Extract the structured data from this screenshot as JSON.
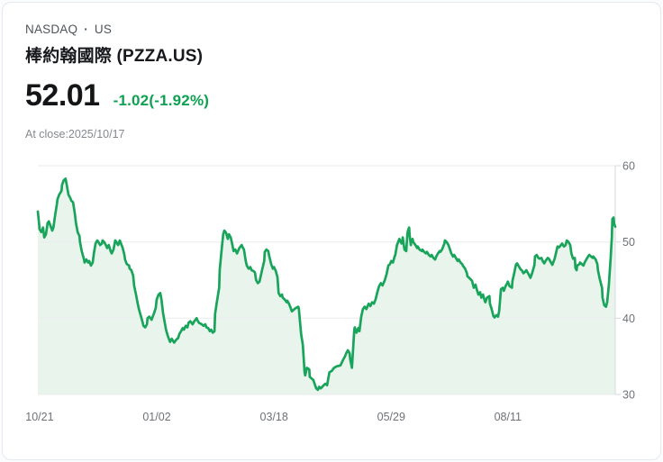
{
  "header": {
    "market": "NASDAQ",
    "separator": "·",
    "region": "US",
    "title": "棒約翰國際 (PZZA.US)"
  },
  "quote": {
    "price": "52.01",
    "change": "-1.02(-1.92%)",
    "change_color": "#0ea152",
    "as_of": "At close:2025/10/17"
  },
  "chart_data": {
    "type": "area",
    "title": "PZZA.US one-year price line",
    "ylim": [
      30,
      60
    ],
    "grid": true,
    "legend": "none",
    "line_color": "#18a45a",
    "fill_color": "#e8f4ec",
    "grid_color": "#eaebec",
    "axis_color": "#d7d9db",
    "label_color": "#6e7277",
    "y_ticks": [
      {
        "label": "60",
        "value": 60
      },
      {
        "label": "50",
        "value": 50
      },
      {
        "label": "40",
        "value": 40
      },
      {
        "label": "30",
        "value": 30
      }
    ],
    "x_ticks": [
      {
        "label": "10/21",
        "t": 3
      },
      {
        "label": "01/02",
        "t": 206
      },
      {
        "label": "03/18",
        "t": 409
      },
      {
        "label": "05/29",
        "t": 612
      },
      {
        "label": "08/11",
        "t": 814
      }
    ],
    "points": [
      [
        0,
        54.0
      ],
      [
        2,
        52.5
      ],
      [
        3,
        51.7
      ],
      [
        6,
        51.3
      ],
      [
        9,
        51.9
      ],
      [
        11,
        50.6
      ],
      [
        14,
        51.0
      ],
      [
        17,
        52.5
      ],
      [
        19,
        52.7
      ],
      [
        22,
        52.1
      ],
      [
        25,
        51.5
      ],
      [
        27,
        51.9
      ],
      [
        30,
        53.5
      ],
      [
        33,
        55.0
      ],
      [
        34,
        55.6
      ],
      [
        37,
        56.2
      ],
      [
        41,
        56.7
      ],
      [
        42,
        57.5
      ],
      [
        45,
        58.1
      ],
      [
        48,
        58.3
      ],
      [
        50,
        57.5
      ],
      [
        53,
        56.2
      ],
      [
        56,
        55.8
      ],
      [
        58,
        55.4
      ],
      [
        61,
        55.2
      ],
      [
        64,
        53.8
      ],
      [
        66,
        52.5
      ],
      [
        69,
        51.3
      ],
      [
        72,
        50.8
      ],
      [
        73,
        50.0
      ],
      [
        76,
        48.8
      ],
      [
        80,
        47.7
      ],
      [
        81,
        47.3
      ],
      [
        84,
        47.7
      ],
      [
        87,
        47.3
      ],
      [
        89,
        47.5
      ],
      [
        92,
        46.9
      ],
      [
        95,
        47.3
      ],
      [
        97,
        48.5
      ],
      [
        100,
        49.8
      ],
      [
        103,
        50.2
      ],
      [
        105,
        50.0
      ],
      [
        108,
        49.6
      ],
      [
        111,
        49.8
      ],
      [
        112,
        50.2
      ],
      [
        115,
        50.0
      ],
      [
        119,
        49.4
      ],
      [
        120,
        49.2
      ],
      [
        123,
        49.6
      ],
      [
        126,
        48.8
      ],
      [
        128,
        48.5
      ],
      [
        131,
        49.0
      ],
      [
        134,
        50.2
      ],
      [
        136,
        50.0
      ],
      [
        139,
        49.6
      ],
      [
        142,
        50.2
      ],
      [
        144,
        49.8
      ],
      [
        147,
        49.2
      ],
      [
        150,
        48.3
      ],
      [
        151,
        47.7
      ],
      [
        154,
        47.1
      ],
      [
        158,
        46.9
      ],
      [
        159,
        46.5
      ],
      [
        162,
        46.3
      ],
      [
        165,
        45.6
      ],
      [
        167,
        44.2
      ],
      [
        170,
        43.1
      ],
      [
        173,
        41.9
      ],
      [
        175,
        41.2
      ],
      [
        178,
        40.4
      ],
      [
        181,
        39.6
      ],
      [
        183,
        39.0
      ],
      [
        186,
        38.8
      ],
      [
        189,
        39.2
      ],
      [
        190,
        40.0
      ],
      [
        193,
        40.2
      ],
      [
        197,
        39.8
      ],
      [
        198,
        40.0
      ],
      [
        201,
        40.6
      ],
      [
        204,
        41.3
      ],
      [
        206,
        42.5
      ],
      [
        209,
        43.1
      ],
      [
        212,
        43.3
      ],
      [
        214,
        42.5
      ],
      [
        217,
        40.6
      ],
      [
        222,
        38.5
      ],
      [
        225,
        37.7
      ],
      [
        229,
        36.9
      ],
      [
        232,
        37.3
      ],
      [
        236,
        36.8
      ],
      [
        240,
        37.2
      ],
      [
        243,
        37.4
      ],
      [
        245,
        37.9
      ],
      [
        248,
        38.3
      ],
      [
        251,
        38.7
      ],
      [
        253,
        38.5
      ],
      [
        256,
        39.0
      ],
      [
        259,
        38.8
      ],
      [
        261,
        39.4
      ],
      [
        264,
        39.6
      ],
      [
        268,
        39.2
      ],
      [
        271,
        39.6
      ],
      [
        275,
        40.0
      ],
      [
        276,
        39.8
      ],
      [
        279,
        39.4
      ],
      [
        284,
        39.2
      ],
      [
        287,
        39.0
      ],
      [
        290,
        39.2
      ],
      [
        292,
        38.8
      ],
      [
        295,
        38.7
      ],
      [
        298,
        38.3
      ],
      [
        300,
        38.5
      ],
      [
        303,
        38.1
      ],
      [
        306,
        38.3
      ],
      [
        307,
        40.6
      ],
      [
        310,
        42.1
      ],
      [
        314,
        44.0
      ],
      [
        315,
        46.3
      ],
      [
        318,
        48.7
      ],
      [
        321,
        51.0
      ],
      [
        323,
        51.5
      ],
      [
        326,
        51.2
      ],
      [
        329,
        50.4
      ],
      [
        331,
        51.0
      ],
      [
        334,
        50.6
      ],
      [
        337,
        49.6
      ],
      [
        339,
        48.8
      ],
      [
        342,
        49.0
      ],
      [
        345,
        48.5
      ],
      [
        346,
        48.7
      ],
      [
        349,
        49.2
      ],
      [
        353,
        49.6
      ],
      [
        354,
        49.4
      ],
      [
        357,
        49.0
      ],
      [
        360,
        47.5
      ],
      [
        362,
        46.9
      ],
      [
        365,
        46.5
      ],
      [
        368,
        46.7
      ],
      [
        370,
        46.3
      ],
      [
        373,
        46.2
      ],
      [
        376,
        46.0
      ],
      [
        378,
        45.0
      ],
      [
        381,
        44.6
      ],
      [
        384,
        44.8
      ],
      [
        385,
        45.2
      ],
      [
        388,
        46.2
      ],
      [
        392,
        47.5
      ],
      [
        393,
        48.7
      ],
      [
        396,
        49.0
      ],
      [
        399,
        48.8
      ],
      [
        401,
        48.1
      ],
      [
        404,
        47.1
      ],
      [
        407,
        46.5
      ],
      [
        409,
        46.7
      ],
      [
        412,
        46.2
      ],
      [
        415,
        45.4
      ],
      [
        417,
        43.3
      ],
      [
        420,
        42.9
      ],
      [
        423,
        43.1
      ],
      [
        424,
        42.7
      ],
      [
        427,
        42.5
      ],
      [
        431,
        42.1
      ],
      [
        432,
        42.3
      ],
      [
        435,
        41.9
      ],
      [
        438,
        41.3
      ],
      [
        440,
        40.9
      ],
      [
        443,
        41.1
      ],
      [
        446,
        41.3
      ],
      [
        451,
        41.5
      ],
      [
        452,
        41.3
      ],
      [
        456,
        37.9
      ],
      [
        459,
        36.5
      ],
      [
        462,
        32.9
      ],
      [
        463,
        32.5
      ],
      [
        466,
        33.5
      ],
      [
        470,
        33.3
      ],
      [
        471,
        32.3
      ],
      [
        477,
        31.9
      ],
      [
        482,
        30.8
      ],
      [
        485,
        30.6
      ],
      [
        487,
        31.0
      ],
      [
        490,
        30.8
      ],
      [
        495,
        31.2
      ],
      [
        498,
        31.4
      ],
      [
        501,
        31.2
      ],
      [
        505,
        32.9
      ],
      [
        509,
        33.1
      ],
      [
        513,
        33.5
      ],
      [
        518,
        33.7
      ],
      [
        524,
        33.8
      ],
      [
        529,
        34.6
      ],
      [
        532,
        35.0
      ],
      [
        534,
        35.4
      ],
      [
        537,
        35.8
      ],
      [
        540,
        35.4
      ],
      [
        541,
        34.6
      ],
      [
        544,
        33.5
      ],
      [
        548,
        38.5
      ],
      [
        549,
        38.8
      ],
      [
        552,
        38.1
      ],
      [
        555,
        38.7
      ],
      [
        557,
        38.3
      ],
      [
        560,
        40.2
      ],
      [
        563,
        41.2
      ],
      [
        566,
        41.5
      ],
      [
        569,
        41.2
      ],
      [
        573,
        41.9
      ],
      [
        576,
        41.6
      ],
      [
        579,
        42.1
      ],
      [
        582,
        41.9
      ],
      [
        585,
        42.5
      ],
      [
        588,
        43.4
      ],
      [
        591,
        44.2
      ],
      [
        594,
        44.6
      ],
      [
        597,
        44.3
      ],
      [
        601,
        45.0
      ],
      [
        604,
        45.8
      ],
      [
        607,
        46.9
      ],
      [
        610,
        47.1
      ],
      [
        612,
        47.5
      ],
      [
        615,
        47.3
      ],
      [
        618,
        48.1
      ],
      [
        619,
        48.3
      ],
      [
        622,
        49.6
      ],
      [
        626,
        50.4
      ],
      [
        627,
        50.2
      ],
      [
        630,
        49.8
      ],
      [
        632,
        50.6
      ],
      [
        635,
        49.0
      ],
      [
        638,
        48.8
      ],
      [
        640,
        51.0
      ],
      [
        641,
        51.5
      ],
      [
        643,
        51.9
      ],
      [
        644,
        50.8
      ],
      [
        646,
        49.6
      ],
      [
        647,
        50.2
      ],
      [
        649,
        50.4
      ],
      [
        650,
        50.0
      ],
      [
        654,
        49.6
      ],
      [
        657,
        49.2
      ],
      [
        658,
        49.4
      ],
      [
        661,
        49.0
      ],
      [
        665,
        48.8
      ],
      [
        666,
        49.0
      ],
      [
        669,
        48.7
      ],
      [
        672,
        48.5
      ],
      [
        674,
        48.7
      ],
      [
        677,
        48.3
      ],
      [
        680,
        48.1
      ],
      [
        682,
        48.3
      ],
      [
        685,
        47.9
      ],
      [
        688,
        47.7
      ],
      [
        690,
        48.1
      ],
      [
        693,
        48.5
      ],
      [
        696,
        48.8
      ],
      [
        697,
        48.7
      ],
      [
        700,
        49.0
      ],
      [
        704,
        49.8
      ],
      [
        705,
        50.2
      ],
      [
        708,
        50.0
      ],
      [
        711,
        49.6
      ],
      [
        713,
        49.2
      ],
      [
        716,
        48.5
      ],
      [
        719,
        48.1
      ],
      [
        721,
        48.3
      ],
      [
        724,
        47.9
      ],
      [
        727,
        47.5
      ],
      [
        729,
        47.7
      ],
      [
        732,
        47.3
      ],
      [
        735,
        47.1
      ],
      [
        736,
        46.9
      ],
      [
        740,
        46.5
      ],
      [
        743,
        45.9
      ],
      [
        744,
        45.5
      ],
      [
        747,
        45.3
      ],
      [
        752,
        44.9
      ],
      [
        755,
        44.0
      ],
      [
        758,
        44.4
      ],
      [
        760,
        43.8
      ],
      [
        763,
        43.1
      ],
      [
        766,
        43.4
      ],
      [
        768,
        42.7
      ],
      [
        771,
        43.1
      ],
      [
        774,
        42.3
      ],
      [
        775,
        42.1
      ],
      [
        778,
        42.7
      ],
      [
        782,
        42.9
      ],
      [
        783,
        41.9
      ],
      [
        786,
        41.2
      ],
      [
        789,
        40.3
      ],
      [
        791,
        40.1
      ],
      [
        794,
        40.4
      ],
      [
        797,
        40.2
      ],
      [
        799,
        41.0
      ],
      [
        802,
        43.8
      ],
      [
        805,
        44.0
      ],
      [
        807,
        43.6
      ],
      [
        810,
        44.2
      ],
      [
        813,
        44.6
      ],
      [
        814,
        44.8
      ],
      [
        817,
        44.2
      ],
      [
        821,
        44.0
      ],
      [
        822,
        44.9
      ],
      [
        825,
        45.9
      ],
      [
        828,
        47.0
      ],
      [
        830,
        47.2
      ],
      [
        833,
        46.8
      ],
      [
        836,
        46.4
      ],
      [
        838,
        46.3
      ],
      [
        841,
        45.9
      ],
      [
        844,
        46.1
      ],
      [
        846,
        46.3
      ],
      [
        849,
        45.9
      ],
      [
        852,
        45.5
      ],
      [
        853,
        45.3
      ],
      [
        856,
        45.9
      ],
      [
        860,
        47.0
      ],
      [
        861,
        48.1
      ],
      [
        864,
        48.3
      ],
      [
        867,
        47.9
      ],
      [
        869,
        47.8
      ],
      [
        872,
        47.9
      ],
      [
        875,
        47.4
      ],
      [
        877,
        47.2
      ],
      [
        880,
        47.6
      ],
      [
        883,
        47.9
      ],
      [
        885,
        47.8
      ],
      [
        888,
        47.4
      ],
      [
        891,
        47.0
      ],
      [
        892,
        47.2
      ],
      [
        895,
        47.8
      ],
      [
        899,
        49.1
      ],
      [
        900,
        49.4
      ],
      [
        903,
        49.3
      ],
      [
        906,
        49.6
      ],
      [
        908,
        49.8
      ],
      [
        911,
        49.4
      ],
      [
        914,
        49.6
      ],
      [
        916,
        50.2
      ],
      [
        919,
        50.0
      ],
      [
        922,
        49.6
      ],
      [
        924,
        48.5
      ],
      [
        927,
        47.8
      ],
      [
        930,
        47.9
      ],
      [
        931,
        46.6
      ],
      [
        933,
        46.3
      ],
      [
        934,
        46.9
      ],
      [
        938,
        47.1
      ],
      [
        939,
        47.3
      ],
      [
        942,
        47.1
      ],
      [
        945,
        46.9
      ],
      [
        947,
        47.3
      ],
      [
        950,
        47.7
      ],
      [
        953,
        48.1
      ],
      [
        955,
        48.3
      ],
      [
        958,
        48.1
      ],
      [
        961,
        47.9
      ],
      [
        962,
        48.1
      ],
      [
        966,
        47.7
      ],
      [
        969,
        47.1
      ],
      [
        970,
        46.3
      ],
      [
        973,
        45.2
      ],
      [
        977,
        44.0
      ],
      [
        978,
        42.7
      ],
      [
        981,
        41.7
      ],
      [
        984,
        41.5
      ],
      [
        986,
        42.1
      ],
      [
        989,
        44.4
      ],
      [
        992,
        47.9
      ],
      [
        994,
        50.6
      ],
      [
        995,
        53.0
      ],
      [
        997,
        53.2
      ],
      [
        998,
        52.4
      ],
      [
        1000,
        52.0
      ]
    ]
  }
}
